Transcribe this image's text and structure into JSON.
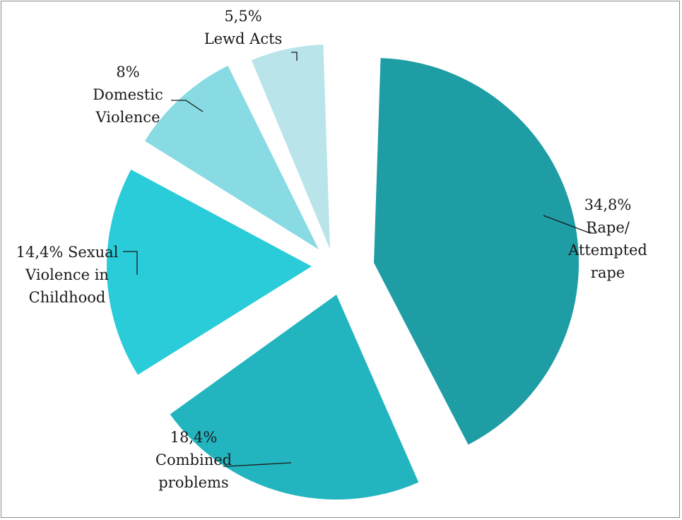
{
  "chart_data": {
    "type": "pie",
    "exploded": true,
    "legend": "none",
    "slices": [
      {
        "id": "rape",
        "value": 34.8,
        "color": "#1e9da4",
        "lines": [
          "34,8%",
          "Rape/",
          "Attempted",
          "rape"
        ]
      },
      {
        "id": "combined",
        "value": 18.4,
        "color": "#23b5bf",
        "lines": [
          "18,4%",
          "Combined",
          "problems"
        ]
      },
      {
        "id": "childhood",
        "value": 14.4,
        "color": "#29ccd8",
        "lines": [
          "14,4% Sexual",
          "Violence in",
          "Childhood"
        ]
      },
      {
        "id": "domestic",
        "value": 8,
        "color": "#88dae3",
        "lines": [
          "8%",
          "Domestic",
          "Violence"
        ]
      },
      {
        "id": "lewd",
        "value": 5.5,
        "color": "#b9e5ea",
        "lines": [
          "5,5%",
          "Lewd Acts"
        ]
      }
    ]
  }
}
